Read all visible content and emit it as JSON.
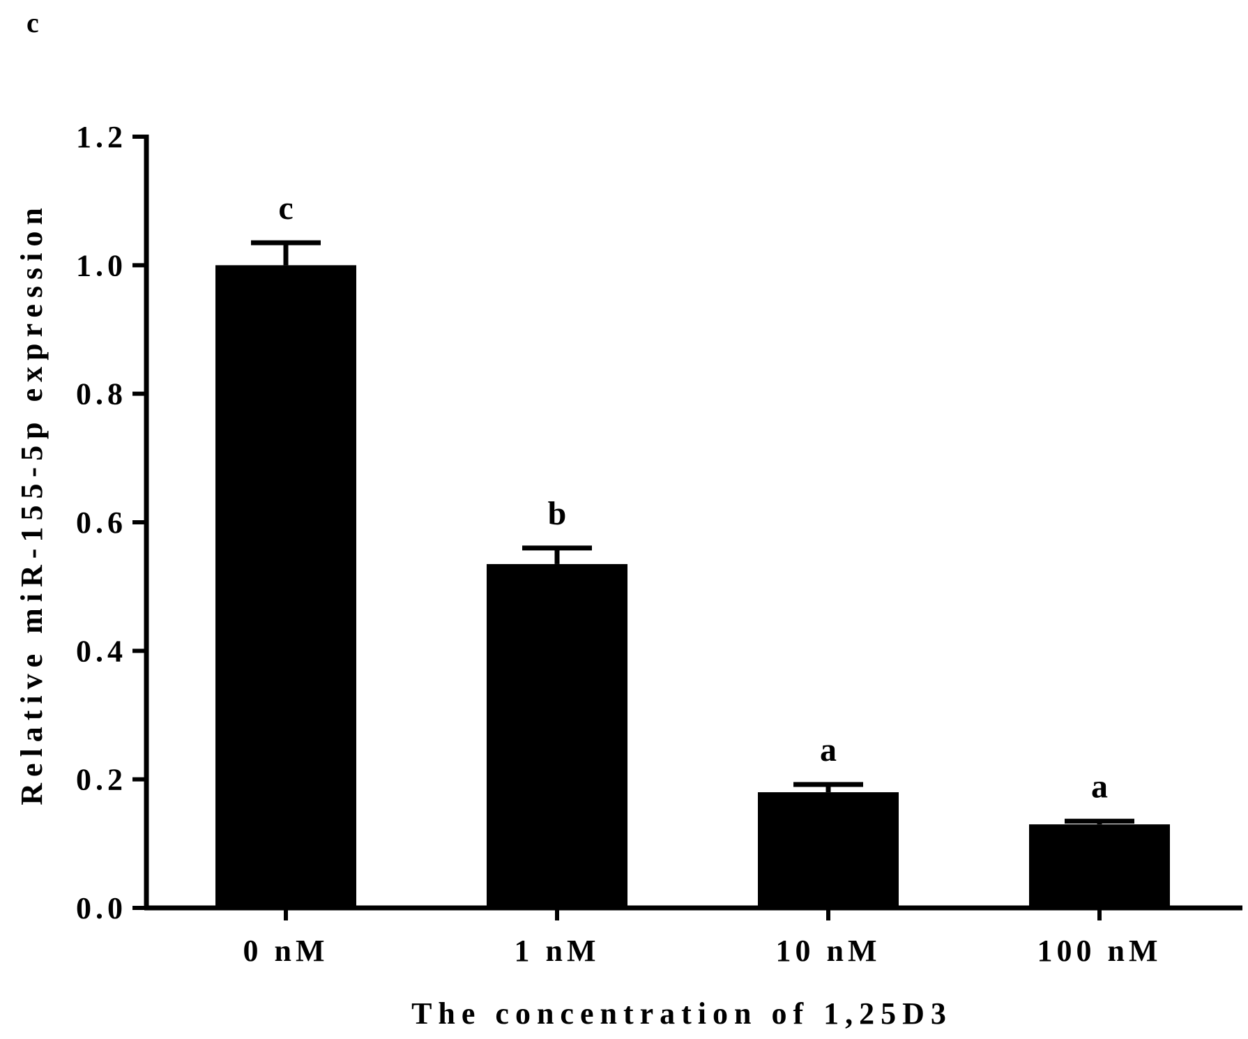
{
  "panel_label": "c",
  "chart_data": {
    "type": "bar",
    "title": "",
    "categories": [
      "0 nM",
      "1 nM",
      "10 nM",
      "100 nM"
    ],
    "series": [
      {
        "values": [
          1.0,
          0.535,
          0.18,
          0.13
        ],
        "errors": [
          0.035,
          0.025,
          0.012,
          0.005
        ],
        "significance": [
          "c",
          "b",
          "a",
          "a"
        ],
        "color": "#000000"
      }
    ],
    "xlabel": "The concentration of 1,25D3",
    "ylabel": "Relative miR-155-5p expression",
    "ylim": [
      0,
      1.2
    ],
    "yticks": [
      "0.0",
      "0.2",
      "0.4",
      "0.6",
      "0.8",
      "1.0",
      "1.2"
    ],
    "grid": false,
    "legend": "none"
  }
}
